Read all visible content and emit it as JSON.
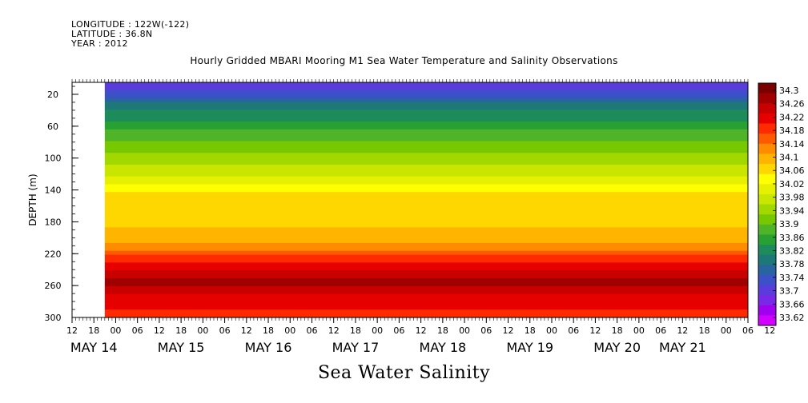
{
  "header": {
    "longitude": "LONGITUDE : 122W(-122)",
    "latitude": "LATITUDE : 36.8N",
    "year": "YEAR : 2012"
  },
  "chart_data": {
    "type": "heatmap",
    "title": "Hourly Gridded MBARI Mooring M1 Sea Water Temperature and Salinity Observations",
    "bottom_title": "Sea Water Salinity",
    "ylabel": "DEPTH (m)",
    "ylim": [
      300,
      5
    ],
    "y_ticks": [
      20,
      60,
      100,
      140,
      180,
      220,
      260,
      300
    ],
    "x_range_hours": [
      0,
      186
    ],
    "x_hour_ticks": [
      "12",
      "18",
      "00",
      "06",
      "12",
      "18",
      "00",
      "06",
      "12",
      "18",
      "00",
      "06",
      "12",
      "18",
      "00",
      "06",
      "12",
      "18",
      "00",
      "06",
      "12",
      "18",
      "00",
      "06",
      "12",
      "18",
      "00",
      "06",
      "12",
      "18",
      "00",
      "06",
      "12"
    ],
    "x_date_labels": [
      {
        "label": "MAY 14",
        "hour": 6
      },
      {
        "label": "MAY 15",
        "hour": 30
      },
      {
        "label": "MAY 16",
        "hour": 54
      },
      {
        "label": "MAY 17",
        "hour": 78
      },
      {
        "label": "MAY 18",
        "hour": 102
      },
      {
        "label": "MAY 19",
        "hour": 126
      },
      {
        "label": "MAY 20",
        "hour": 150
      },
      {
        "label": "MAY 21",
        "hour": 168
      }
    ],
    "data_start_hour": 9,
    "profile": [
      {
        "depth": 5,
        "salinity": 33.7
      },
      {
        "depth": 20,
        "salinity": 33.73
      },
      {
        "depth": 35,
        "salinity": 33.8
      },
      {
        "depth": 60,
        "salinity": 33.86
      },
      {
        "depth": 90,
        "salinity": 33.92
      },
      {
        "depth": 120,
        "salinity": 33.98
      },
      {
        "depth": 145,
        "salinity": 34.05
      },
      {
        "depth": 180,
        "salinity": 34.07
      },
      {
        "depth": 205,
        "salinity": 34.1
      },
      {
        "depth": 225,
        "salinity": 34.18
      },
      {
        "depth": 245,
        "salinity": 34.24
      },
      {
        "depth": 258,
        "salinity": 34.27
      },
      {
        "depth": 275,
        "salinity": 34.22
      },
      {
        "depth": 300,
        "salinity": 34.18
      }
    ],
    "colorbar": {
      "labels": [
        "34.3",
        "34.26",
        "34.22",
        "34.18",
        "34.14",
        "34.1",
        "34.06",
        "34.02",
        "33.98",
        "33.94",
        "33.9",
        "33.86",
        "33.82",
        "33.78",
        "33.74",
        "33.7",
        "33.66",
        "33.62"
      ],
      "colors": [
        "#7a0000",
        "#a00000",
        "#c80000",
        "#e60000",
        "#ff2a00",
        "#ff5a00",
        "#ff8c00",
        "#ffb400",
        "#ffd700",
        "#ffff00",
        "#e6f000",
        "#c8e600",
        "#a0d800",
        "#78c800",
        "#50b428",
        "#28a032",
        "#1e8c5a",
        "#1e7878",
        "#2864a0",
        "#3c50c8",
        "#5a3cdc",
        "#7828e6",
        "#a000f0",
        "#d200ff"
      ]
    }
  }
}
